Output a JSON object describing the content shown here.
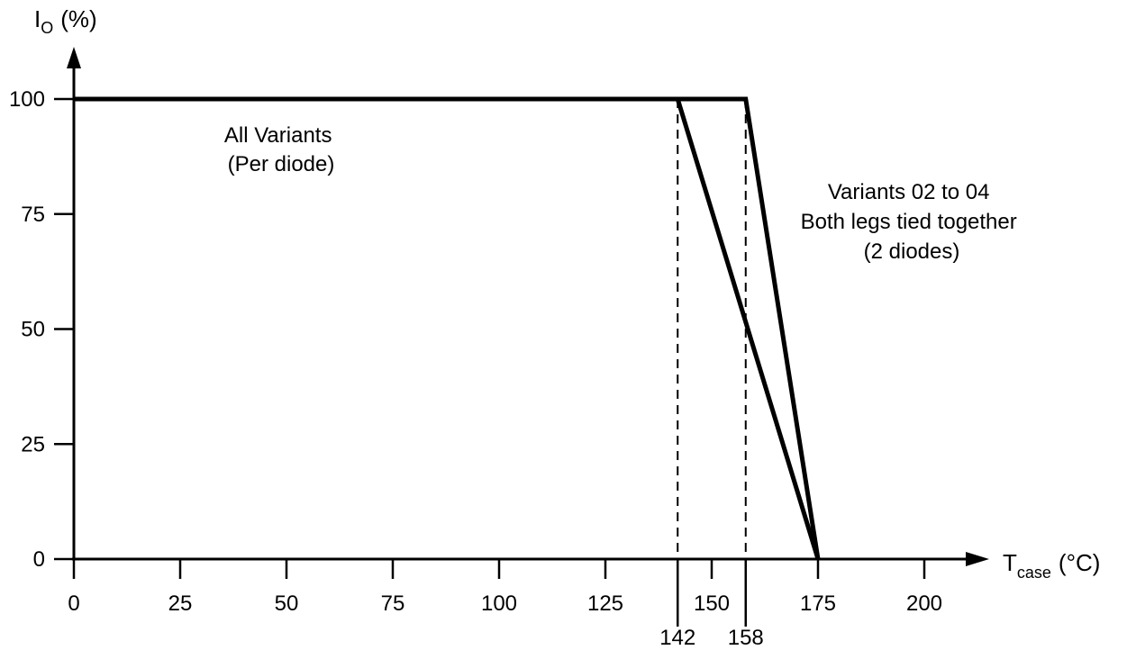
{
  "chart_data": {
    "type": "line",
    "title": "",
    "ylabel": {
      "main": "I",
      "sub": "O",
      "unit": "(%)"
    },
    "xlabel": {
      "main": "T",
      "sub": "case",
      "unit": "(°C)"
    },
    "xlim": [
      0,
      210
    ],
    "ylim": [
      0,
      110
    ],
    "x_ticks": [
      0,
      25,
      50,
      75,
      100,
      125,
      150,
      175,
      200
    ],
    "x_tick_labels": [
      "0",
      "25",
      "50",
      "75",
      "100",
      "125",
      "150",
      "175",
      "200"
    ],
    "y_ticks": [
      0,
      25,
      50,
      75,
      100
    ],
    "y_tick_labels": [
      "0",
      "25",
      "50",
      "75",
      "100"
    ],
    "grid": false,
    "series": [
      {
        "name": "All Variants (Per diode)",
        "x": [
          0,
          142,
          175
        ],
        "y": [
          100,
          100,
          0
        ]
      },
      {
        "name": "Variants 02 to 04 Both legs tied together (2 diodes)",
        "x": [
          0,
          158,
          175
        ],
        "y": [
          100,
          100,
          0
        ]
      }
    ],
    "reference_lines": [
      {
        "x": 142,
        "label": "142"
      },
      {
        "x": 158,
        "label": "158"
      }
    ],
    "annotations": [
      {
        "lines": [
          "All Variants",
          "(Per diode)"
        ]
      },
      {
        "lines": [
          "Variants 02 to 04",
          "Both legs tied together",
          "(2 diodes)"
        ]
      }
    ]
  }
}
